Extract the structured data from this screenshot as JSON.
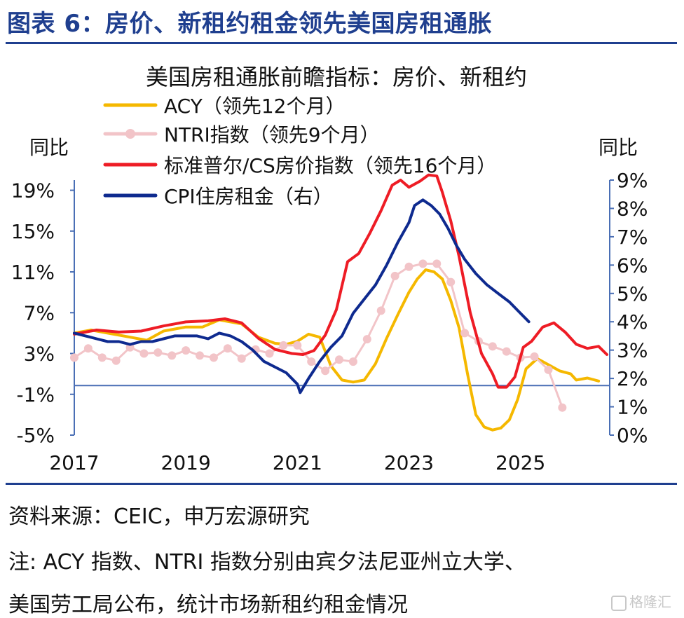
{
  "figure_title": "图表 6：房价、新租约租金领先美国房租通胀",
  "notes": {
    "source": "资料来源：CEIC，申万宏源研究",
    "note_line1": "注: ACY 指数、NTRI 指数分别由宾夕法尼亚州立大学、",
    "note_line2": "美国劳工局公布，统计市场新租约租金情况"
  },
  "watermark": "格隆汇",
  "chart_data": {
    "type": "line",
    "title": "美国房租通胀前瞻指标：房价、新租约",
    "ylabel_left": "同比",
    "ylabel_right": "同比",
    "x_ticks": [
      "2017",
      "2019",
      "2021",
      "2023",
      "2025"
    ],
    "x_range": [
      2017,
      2026.6
    ],
    "y_left": {
      "range": [
        -5,
        20
      ],
      "ticks": [
        "19%",
        "15%",
        "11%",
        "7%",
        "3%",
        "-1%",
        "-5%"
      ],
      "tick_values": [
        19,
        15,
        11,
        7,
        3,
        -1,
        -5
      ]
    },
    "y_right": {
      "range": [
        0,
        9
      ],
      "ticks": [
        "9%",
        "8%",
        "7%",
        "6%",
        "5%",
        "4%",
        "3%",
        "2%",
        "1%",
        "0%"
      ],
      "tick_values": [
        9,
        8,
        7,
        6,
        5,
        4,
        3,
        2,
        1,
        0
      ]
    },
    "legend_position": "top-left",
    "series": [
      {
        "name": "ACY（领先12个月）",
        "color": "#f5b800",
        "axis": "left",
        "marker": false,
        "x": [
          2017.0,
          2017.3,
          2017.6,
          2018.0,
          2018.3,
          2018.6,
          2019.0,
          2019.3,
          2019.6,
          2020.0,
          2020.3,
          2020.6,
          2020.8,
          2021.0,
          2021.2,
          2021.4,
          2021.6,
          2021.8,
          2022.0,
          2022.2,
          2022.4,
          2022.6,
          2022.8,
          2023.0,
          2023.15,
          2023.3,
          2023.45,
          2023.6,
          2023.75,
          2023.9,
          2024.05,
          2024.2,
          2024.35,
          2024.5,
          2024.65,
          2024.8,
          2024.95,
          2025.1,
          2025.3,
          2025.5,
          2025.7,
          2025.9,
          2026.0,
          2026.2,
          2026.4
        ],
        "y": [
          5.0,
          5.3,
          5.0,
          4.6,
          4.3,
          5.2,
          5.6,
          5.6,
          6.3,
          5.9,
          4.6,
          4.0,
          3.9,
          4.2,
          4.9,
          4.6,
          1.8,
          0.4,
          0.2,
          0.4,
          2.0,
          4.5,
          6.8,
          9.0,
          10.3,
          11.2,
          11.0,
          10.3,
          8.2,
          5.5,
          1.0,
          -3.0,
          -4.2,
          -4.5,
          -4.3,
          -3.5,
          -1.5,
          1.5,
          2.5,
          1.9,
          1.3,
          1.0,
          0.4,
          0.6,
          0.3
        ]
      },
      {
        "name": "NTRI指数（领先9个月）",
        "color": "#f2c4c8",
        "axis": "left",
        "marker": true,
        "x": [
          2017.0,
          2017.25,
          2017.5,
          2017.75,
          2018.0,
          2018.25,
          2018.5,
          2018.75,
          2019.0,
          2019.25,
          2019.5,
          2019.75,
          2020.0,
          2020.25,
          2020.5,
          2020.75,
          2021.0,
          2021.25,
          2021.5,
          2021.75,
          2022.0,
          2022.25,
          2022.5,
          2022.75,
          2023.0,
          2023.25,
          2023.5,
          2023.75,
          2024.0,
          2024.25,
          2024.5,
          2024.75,
          2025.0,
          2025.25,
          2025.5,
          2025.75
        ],
        "y": [
          2.6,
          3.5,
          2.6,
          2.3,
          3.6,
          3.0,
          3.1,
          2.8,
          3.3,
          2.8,
          2.6,
          3.5,
          2.5,
          3.4,
          3.0,
          3.8,
          3.8,
          2.2,
          1.3,
          2.4,
          2.2,
          4.4,
          7.2,
          10.6,
          11.5,
          11.8,
          11.8,
          10.0,
          5.0,
          4.2,
          3.7,
          3.2,
          2.6,
          2.7,
          1.4,
          -2.3
        ]
      },
      {
        "name": "标准普尔/CS房价指数（领先16个月）",
        "color": "#ee1c25",
        "axis": "left",
        "marker": false,
        "x": [
          2017.0,
          2017.4,
          2017.8,
          2018.2,
          2018.6,
          2019.0,
          2019.4,
          2019.7,
          2020.0,
          2020.3,
          2020.6,
          2020.9,
          2021.1,
          2021.3,
          2021.5,
          2021.7,
          2021.9,
          2022.1,
          2022.3,
          2022.5,
          2022.7,
          2022.85,
          2023.0,
          2023.2,
          2023.35,
          2023.5,
          2023.6,
          2023.75,
          2023.9,
          2024.1,
          2024.3,
          2024.5,
          2024.6,
          2024.75,
          2024.9,
          2025.05,
          2025.2,
          2025.4,
          2025.6,
          2025.8,
          2026.0,
          2026.2,
          2026.4,
          2026.55
        ],
        "y": [
          4.9,
          5.3,
          5.1,
          5.2,
          5.7,
          6.1,
          6.2,
          6.4,
          6.0,
          4.5,
          3.4,
          3.0,
          2.9,
          3.3,
          4.8,
          7.3,
          12.0,
          12.8,
          14.8,
          17.0,
          19.5,
          20.0,
          19.3,
          19.9,
          20.5,
          20.4,
          18.8,
          16.0,
          12.5,
          7.0,
          3.0,
          1.0,
          -0.3,
          -0.3,
          0.7,
          3.6,
          4.2,
          5.6,
          6.0,
          5.1,
          3.9,
          3.5,
          3.7,
          2.9
        ]
      },
      {
        "name": "CPI住房租金（右）",
        "color": "#0e2a8f",
        "axis": "right",
        "marker": false,
        "x": [
          2017.0,
          2017.2,
          2017.4,
          2017.6,
          2017.8,
          2018.0,
          2018.2,
          2018.4,
          2018.6,
          2018.8,
          2019.0,
          2019.2,
          2019.4,
          2019.6,
          2019.8,
          2020.0,
          2020.2,
          2020.4,
          2020.6,
          2020.8,
          2021.0,
          2021.05,
          2021.2,
          2021.4,
          2021.6,
          2021.8,
          2022.0,
          2022.2,
          2022.4,
          2022.6,
          2022.8,
          2023.0,
          2023.1,
          2023.25,
          2023.4,
          2023.55,
          2023.7,
          2023.85,
          2024.0,
          2024.2,
          2024.4,
          2024.6,
          2024.8,
          2025.0,
          2025.15
        ],
        "y": [
          3.6,
          3.5,
          3.4,
          3.3,
          3.3,
          3.2,
          3.3,
          3.3,
          3.4,
          3.5,
          3.5,
          3.5,
          3.4,
          3.6,
          3.5,
          3.3,
          3.0,
          2.6,
          2.4,
          2.2,
          1.8,
          1.5,
          2.0,
          2.6,
          3.1,
          3.5,
          4.3,
          4.8,
          5.3,
          6.0,
          6.8,
          7.5,
          8.1,
          8.3,
          8.1,
          7.8,
          7.3,
          6.7,
          6.2,
          5.7,
          5.3,
          5.0,
          4.7,
          4.3,
          4.0
        ]
      }
    ]
  }
}
